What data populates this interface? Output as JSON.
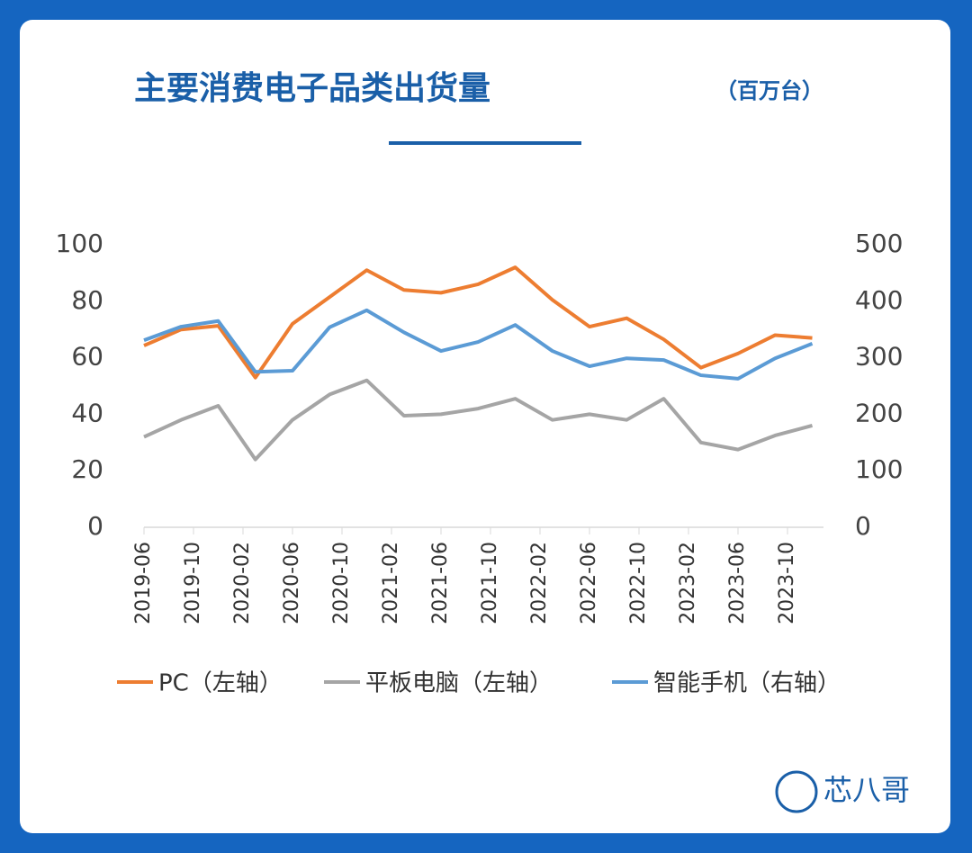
{
  "chart_data": {
    "type": "line",
    "title": "主要消费电子品类出货量",
    "subtitle": "（百万台）",
    "x": [
      "2019-06",
      "2019-09",
      "2019-12",
      "2020-03",
      "2020-06",
      "2020-09",
      "2020-12",
      "2021-03",
      "2021-06",
      "2021-09",
      "2021-12",
      "2022-03",
      "2022-06",
      "2022-09",
      "2022-12",
      "2023-03",
      "2023-06",
      "2023-09",
      "2023-12"
    ],
    "xticks": [
      "2019-06",
      "2019-10",
      "2020-02",
      "2020-06",
      "2020-10",
      "2021-02",
      "2021-06",
      "2021-10",
      "2022-02",
      "2022-06",
      "2022-10",
      "2023-02",
      "2023-06",
      "2023-10"
    ],
    "series": [
      {
        "name": "PC（左轴）",
        "color": "#ed7d31",
        "values": [
          64.3,
          70,
          71.3,
          53,
          72,
          81.5,
          91,
          84,
          83,
          86,
          92,
          80.5,
          71,
          74,
          66.5,
          56.5,
          61.5,
          68,
          67
        ]
      },
      {
        "name": "平板电脑（左轴）",
        "color": "#a5a5a5",
        "values": [
          32,
          38,
          43,
          24,
          38,
          47,
          52,
          39.5,
          40,
          42,
          45.5,
          38,
          40,
          38,
          45.5,
          30,
          27.5,
          32.5,
          36
        ]
      },
      {
        "name": "智能手机（右轴）",
        "color": "#5b9bd5",
        "axis": "y2",
        "values": [
          331,
          355,
          365,
          275,
          277,
          354,
          384,
          345,
          312,
          328,
          358,
          312,
          285,
          299,
          296,
          269,
          263,
          299,
          325
        ]
      }
    ],
    "ylim": [
      0,
      100
    ],
    "yticks": [
      0,
      20,
      40,
      60,
      80,
      100
    ],
    "y2lim": [
      0,
      500
    ],
    "y2ticks": [
      0,
      100,
      200,
      300,
      400,
      500
    ],
    "logo": "芯八哥"
  }
}
